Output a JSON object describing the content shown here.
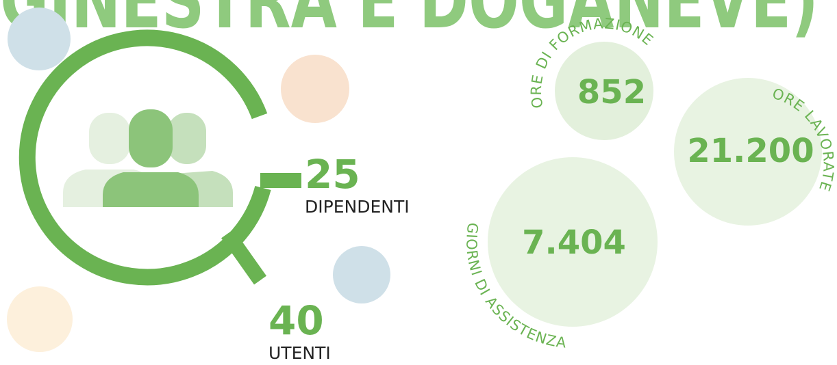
{
  "title": "GINESTRA E DOGANEVE)",
  "stats": [
    {
      "value": "25",
      "label": "DIPENDENTI"
    },
    {
      "value": "40",
      "label": "UTENTI"
    }
  ],
  "bubbles": [
    {
      "value": "852",
      "label": "ORE DI FORMAZIONE"
    },
    {
      "value": "21.200",
      "label": "ORE LAVORATE"
    },
    {
      "value": "7.404",
      "label": "GIORNI DI ASSISTENZA"
    }
  ]
}
